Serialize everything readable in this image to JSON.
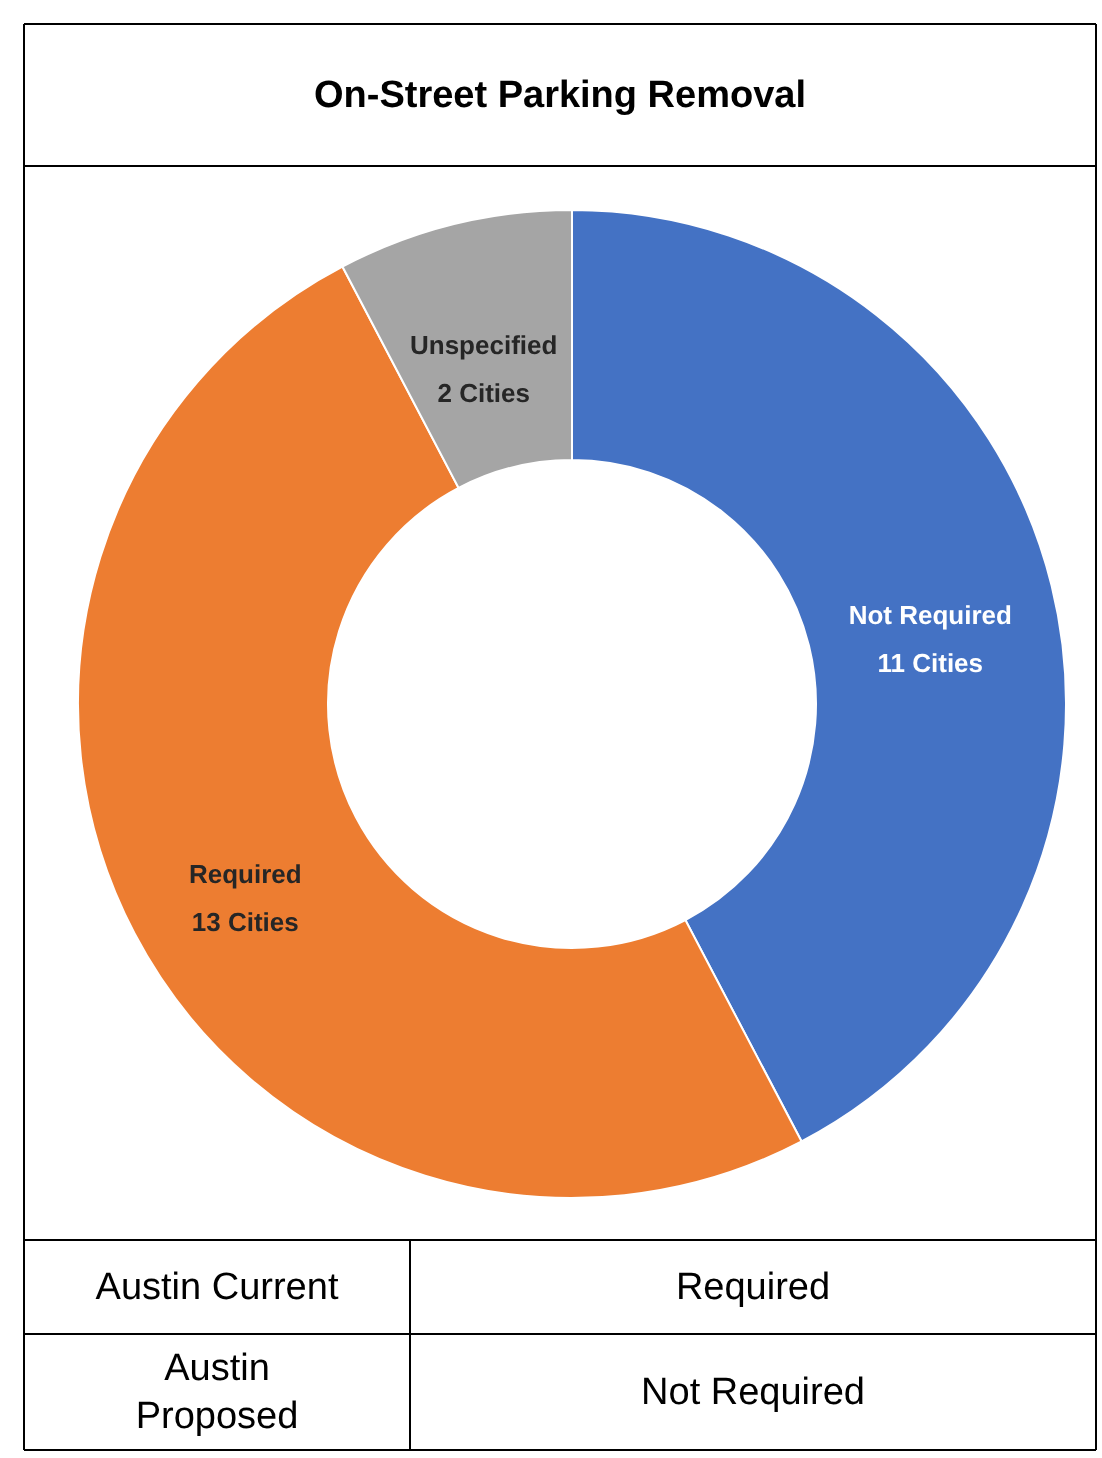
{
  "chart_data": {
    "type": "donut",
    "title": "On-Street Parking Removal",
    "categories": [
      "Not Required",
      "Required",
      "Unspecified"
    ],
    "values": [
      11,
      13,
      2
    ],
    "value_labels": [
      "11 Cities",
      "13 Cities",
      "2 Cities"
    ],
    "colors": [
      "#4472c4",
      "#ed7d31",
      "#a5a5a5"
    ],
    "annotations": [
      "Austin Current",
      "Required",
      "Austin Proposed",
      "Not Required"
    ]
  }
}
